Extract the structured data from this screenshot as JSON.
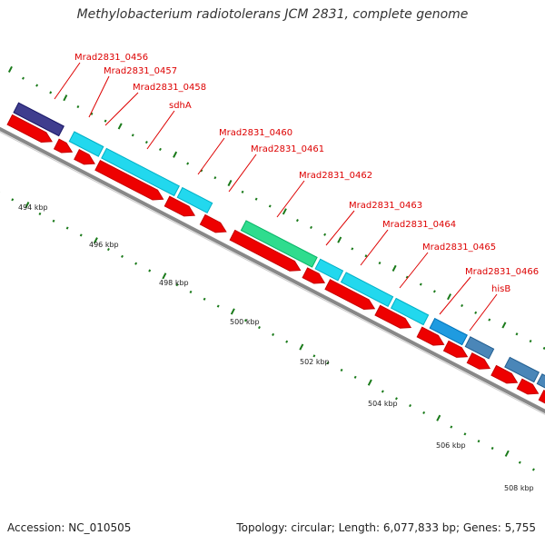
{
  "title": "Methylobacterium radiotolerans JCM 2831, complete genome",
  "footer": {
    "accession": "Accession: NC_010505",
    "topology": "Topology: circular; Length: 6,077,833 bp; Genes: 5,755"
  },
  "colors": {
    "cds": "#ee0000",
    "cyan": "#22d8ee",
    "navy": "#3f3d8e",
    "green": "#2fdc8e",
    "blue": "#1f9be0",
    "steel": "#4a86b8",
    "label": "#dd0000",
    "tick": "#1a7a1a",
    "backbone": "#888888"
  },
  "tick_labels": [
    "494 kbp",
    "496 kbp",
    "498 kbp",
    "500 kbp",
    "502 kbp",
    "504 kbp",
    "506 kbp",
    "508 kbp"
  ],
  "gene_labels": [
    "Mrad2831_0456",
    "Mrad2831_0457",
    "Mrad2831_0458",
    "sdhA",
    "Mrad2831_0460",
    "Mrad2831_0461",
    "Mrad2831_0462",
    "Mrad2831_0463",
    "Mrad2831_0464",
    "Mrad2831_0465",
    "Mrad2831_0466",
    "hisB"
  ]
}
